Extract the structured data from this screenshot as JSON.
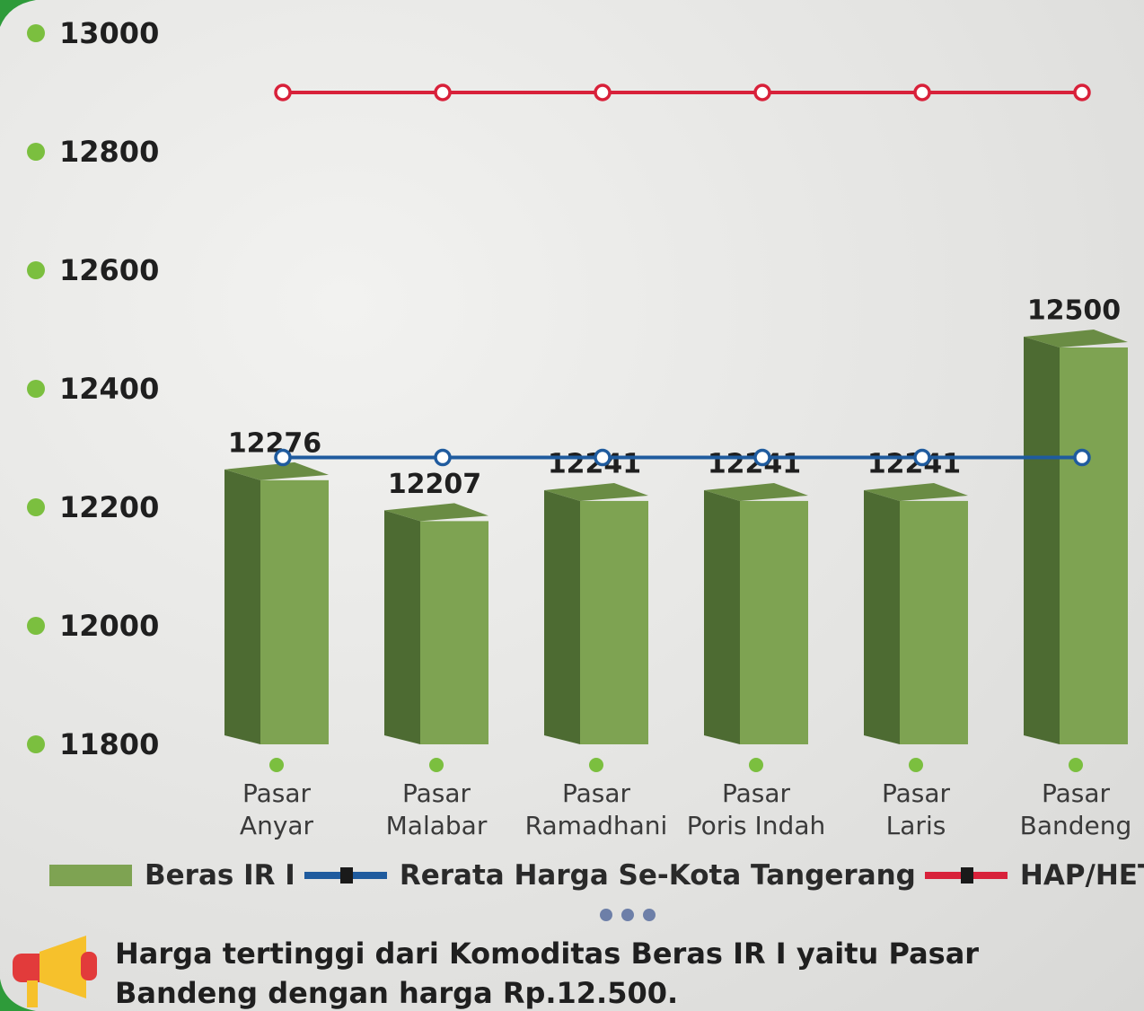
{
  "chart_data": {
    "type": "bar",
    "categories": [
      "Pasar\nAnyar",
      "Pasar\nMalabar",
      "Pasar\nRamadhani",
      "Pasar\nPoris Indah",
      "Pasar\nLaris",
      "Pasar\nBandeng"
    ],
    "series": [
      {
        "name": "Beras IR I",
        "type": "bar",
        "color": "#7ea352",
        "values": [
          12276,
          12207,
          12241,
          12241,
          12241,
          12500
        ]
      },
      {
        "name": "Rerata Harga Se-Kota Tangerang",
        "type": "line",
        "color": "#1f5b9e",
        "values": [
          12284,
          12284,
          12284,
          12284,
          12284,
          12284
        ]
      },
      {
        "name": "HAP/HET",
        "type": "line",
        "color": "#d8213a",
        "values": [
          12900,
          12900,
          12900,
          12900,
          12900,
          12900
        ]
      }
    ],
    "ylim": [
      11800,
      13000
    ],
    "yticks": [
      11800,
      12000,
      12200,
      12400,
      12600,
      12800,
      13000
    ],
    "annotation": "Harga tertinggi dari Komoditas Beras IR I yaitu Pasar Bandeng dengan harga Rp.12.500."
  }
}
